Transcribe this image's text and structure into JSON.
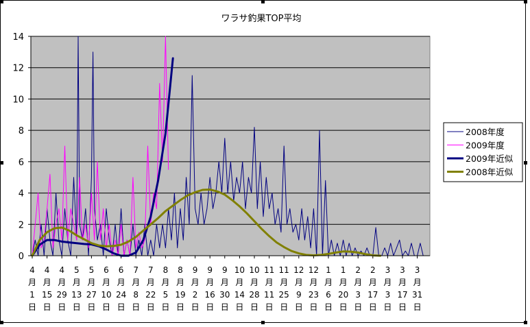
{
  "chart_data": {
    "type": "line",
    "title": "ワラサ釣果TOP平均",
    "ylim": [
      0,
      14
    ],
    "yticks": [
      "0",
      "2",
      "4",
      "6",
      "8",
      "10",
      "12",
      "14"
    ],
    "grid": true,
    "legend_position": "right",
    "plot_background": "#c0c0c0",
    "x_categories": [
      "4\n月\n1\n日",
      "4\n月\n15\n日",
      "4\n月\n29\n日",
      "5\n月\n13\n日",
      "5\n月\n27\n日",
      "6\n月\n10\n日",
      "6\n月\n24\n日",
      "7\n月\n8\n日",
      "7\n月\n22\n日",
      "8\n月\n5\n日",
      "8\n月\n19\n日",
      "9\n月\n2\n日",
      "9\n月\n16\n日",
      "9\n月\n30\n日",
      "10\n月\n14\n日",
      "10\n月\n28\n日",
      "11\n月\n11\n日",
      "11\n月\n25\n日",
      "12\n月\n9\n日",
      "12\n月\n23\n日",
      "1\n月\n6\n日",
      "1\n月\n20\n日",
      "2\n月\n3\n日",
      "2\n月\n17\n日",
      "3\n月\n3\n日",
      "3\n月\n17\n日",
      "3\n月\n31\n日"
    ],
    "series": [
      {
        "name": "2008年度",
        "color": "#000080",
        "width": 1,
        "points": [
          [
            0,
            0
          ],
          [
            0.2,
            1
          ],
          [
            0.4,
            0
          ],
          [
            0.6,
            2
          ],
          [
            0.8,
            0
          ],
          [
            1.0,
            3
          ],
          [
            1.2,
            1
          ],
          [
            1.4,
            0
          ],
          [
            1.6,
            4
          ],
          [
            1.8,
            1
          ],
          [
            2.0,
            0
          ],
          [
            2.2,
            3
          ],
          [
            2.4,
            1
          ],
          [
            2.6,
            0
          ],
          [
            2.8,
            5
          ],
          [
            3.0,
            1
          ],
          [
            3.1,
            14
          ],
          [
            3.2,
            2
          ],
          [
            3.4,
            1
          ],
          [
            3.6,
            3
          ],
          [
            3.8,
            0
          ],
          [
            4.0,
            5
          ],
          [
            4.1,
            13
          ],
          [
            4.2,
            3
          ],
          [
            4.4,
            1
          ],
          [
            4.6,
            2
          ],
          [
            4.8,
            0
          ],
          [
            5.0,
            3
          ],
          [
            5.2,
            1
          ],
          [
            5.4,
            0
          ],
          [
            5.6,
            2
          ],
          [
            5.8,
            0
          ],
          [
            6.0,
            3
          ],
          [
            6.2,
            0
          ],
          [
            6.4,
            1
          ],
          [
            6.6,
            0
          ],
          [
            6.8,
            2
          ],
          [
            7.0,
            0
          ],
          [
            7.2,
            1
          ],
          [
            7.4,
            0
          ],
          [
            7.6,
            2
          ],
          [
            7.8,
            0
          ],
          [
            8.0,
            1
          ],
          [
            8.2,
            0
          ],
          [
            8.4,
            2
          ],
          [
            8.6,
            0.5
          ],
          [
            8.8,
            2
          ],
          [
            9.0,
            0.5
          ],
          [
            9.2,
            3
          ],
          [
            9.4,
            1
          ],
          [
            9.6,
            4
          ],
          [
            9.8,
            0.5
          ],
          [
            10.0,
            3
          ],
          [
            10.2,
            1
          ],
          [
            10.4,
            5
          ],
          [
            10.6,
            2
          ],
          [
            10.8,
            11.5
          ],
          [
            11.0,
            3
          ],
          [
            11.2,
            2
          ],
          [
            11.4,
            4
          ],
          [
            11.6,
            2
          ],
          [
            11.8,
            3
          ],
          [
            12.0,
            5
          ],
          [
            12.2,
            3
          ],
          [
            12.4,
            4
          ],
          [
            12.6,
            6
          ],
          [
            12.8,
            4
          ],
          [
            13.0,
            7.5
          ],
          [
            13.2,
            4
          ],
          [
            13.4,
            6
          ],
          [
            13.6,
            3.5
          ],
          [
            13.8,
            5
          ],
          [
            14.0,
            4
          ],
          [
            14.2,
            6
          ],
          [
            14.4,
            3
          ],
          [
            14.6,
            5
          ],
          [
            14.8,
            4
          ],
          [
            15.0,
            8.2
          ],
          [
            15.2,
            3
          ],
          [
            15.4,
            6
          ],
          [
            15.6,
            2.5
          ],
          [
            15.8,
            5
          ],
          [
            16.0,
            3
          ],
          [
            16.2,
            4
          ],
          [
            16.4,
            2
          ],
          [
            16.6,
            3
          ],
          [
            16.8,
            1.5
          ],
          [
            17.0,
            7
          ],
          [
            17.2,
            2
          ],
          [
            17.4,
            3
          ],
          [
            17.6,
            1.5
          ],
          [
            17.8,
            2
          ],
          [
            18.0,
            1
          ],
          [
            18.2,
            3
          ],
          [
            18.4,
            1
          ],
          [
            18.6,
            2.5
          ],
          [
            18.8,
            0.5
          ],
          [
            19.0,
            3
          ],
          [
            19.2,
            0
          ],
          [
            19.4,
            8
          ],
          [
            19.6,
            0
          ],
          [
            19.8,
            4.8
          ],
          [
            20.0,
            0
          ],
          [
            20.2,
            1
          ],
          [
            20.4,
            0
          ],
          [
            20.6,
            0.8
          ],
          [
            20.8,
            0
          ],
          [
            21.0,
            1
          ],
          [
            21.2,
            0
          ],
          [
            21.4,
            0.8
          ],
          [
            21.6,
            0
          ],
          [
            21.8,
            0.5
          ],
          [
            22.0,
            0
          ],
          [
            22.2,
            0.3
          ],
          [
            22.4,
            0
          ],
          [
            22.6,
            0.5
          ],
          [
            22.8,
            0
          ],
          [
            23.0,
            0
          ],
          [
            23.2,
            1.8
          ],
          [
            23.4,
            0
          ],
          [
            23.6,
            0
          ],
          [
            23.8,
            0.5
          ],
          [
            24.0,
            0
          ],
          [
            24.2,
            0.8
          ],
          [
            24.4,
            0
          ],
          [
            24.6,
            0.5
          ],
          [
            24.8,
            1
          ],
          [
            25.0,
            0
          ],
          [
            25.2,
            0.3
          ],
          [
            25.4,
            0
          ],
          [
            25.6,
            0.8
          ],
          [
            25.8,
            0
          ],
          [
            26.0,
            0
          ],
          [
            26.2,
            0.8
          ],
          [
            26.4,
            0
          ]
        ]
      },
      {
        "name": "2009年度",
        "color": "#ff00ff",
        "width": 1,
        "points": [
          [
            0,
            0
          ],
          [
            0.2,
            2
          ],
          [
            0.4,
            4
          ],
          [
            0.6,
            0.5
          ],
          [
            0.8,
            1
          ],
          [
            1.0,
            3
          ],
          [
            1.2,
            5.2
          ],
          [
            1.4,
            0.5
          ],
          [
            1.6,
            2
          ],
          [
            1.8,
            3
          ],
          [
            2.0,
            1
          ],
          [
            2.2,
            7
          ],
          [
            2.4,
            1
          ],
          [
            2.6,
            3
          ],
          [
            2.8,
            2
          ],
          [
            3.0,
            1
          ],
          [
            3.2,
            5
          ],
          [
            3.4,
            1
          ],
          [
            3.6,
            2
          ],
          [
            3.8,
            0.5
          ],
          [
            4.0,
            4
          ],
          [
            4.2,
            1
          ],
          [
            4.4,
            6
          ],
          [
            4.6,
            1
          ],
          [
            4.8,
            3
          ],
          [
            5.0,
            0.5
          ],
          [
            5.2,
            2
          ],
          [
            5.4,
            0
          ],
          [
            5.6,
            1
          ],
          [
            5.8,
            0
          ],
          [
            6.0,
            2
          ],
          [
            6.2,
            0
          ],
          [
            6.4,
            1
          ],
          [
            6.6,
            0
          ],
          [
            6.8,
            5
          ],
          [
            7.0,
            0.5
          ],
          [
            7.2,
            1.5
          ],
          [
            7.4,
            0.5
          ],
          [
            7.6,
            1
          ],
          [
            7.8,
            7
          ],
          [
            8.0,
            2
          ],
          [
            8.2,
            4
          ],
          [
            8.4,
            3
          ],
          [
            8.6,
            11
          ],
          [
            8.8,
            6
          ],
          [
            9.0,
            14
          ],
          [
            9.2,
            5.5
          ]
        ]
      },
      {
        "name": "2009年近似",
        "color": "#000080",
        "width": 3,
        "points": [
          [
            0,
            0
          ],
          [
            0.5,
            0.7
          ],
          [
            1,
            1.0
          ],
          [
            1.5,
            1.0
          ],
          [
            2,
            0.9
          ],
          [
            2.5,
            0.85
          ],
          [
            3,
            0.8
          ],
          [
            3.5,
            0.75
          ],
          [
            4,
            0.72
          ],
          [
            4.5,
            0.6
          ],
          [
            5,
            0.4
          ],
          [
            5.5,
            0.15
          ],
          [
            6,
            0
          ],
          [
            6.5,
            0
          ],
          [
            7,
            0.2
          ],
          [
            7.5,
            1.0
          ],
          [
            8,
            2.5
          ],
          [
            8.5,
            4.8
          ],
          [
            9,
            7.8
          ],
          [
            9.5,
            12.6
          ]
        ]
      },
      {
        "name": "2008年近似",
        "color": "#808000",
        "width": 3,
        "points": [
          [
            0,
            0
          ],
          [
            0.5,
            1.0
          ],
          [
            1,
            1.5
          ],
          [
            1.5,
            1.75
          ],
          [
            2,
            1.8
          ],
          [
            2.5,
            1.6
          ],
          [
            3,
            1.3
          ],
          [
            3.5,
            1.05
          ],
          [
            4,
            0.8
          ],
          [
            4.5,
            0.65
          ],
          [
            5,
            0.6
          ],
          [
            5.5,
            0.62
          ],
          [
            6,
            0.7
          ],
          [
            6.5,
            0.9
          ],
          [
            7,
            1.2
          ],
          [
            7.5,
            1.6
          ],
          [
            8,
            2.0
          ],
          [
            8.5,
            2.4
          ],
          [
            9,
            2.85
          ],
          [
            9.5,
            3.2
          ],
          [
            10,
            3.55
          ],
          [
            10.5,
            3.85
          ],
          [
            11,
            4.05
          ],
          [
            11.5,
            4.2
          ],
          [
            12,
            4.22
          ],
          [
            12.5,
            4.1
          ],
          [
            13,
            3.9
          ],
          [
            13.5,
            3.55
          ],
          [
            14,
            3.15
          ],
          [
            14.5,
            2.7
          ],
          [
            15,
            2.2
          ],
          [
            15.5,
            1.7
          ],
          [
            16,
            1.25
          ],
          [
            16.5,
            0.85
          ],
          [
            17,
            0.55
          ],
          [
            17.5,
            0.3
          ],
          [
            18,
            0.15
          ],
          [
            18.5,
            0.05
          ],
          [
            19,
            0.02
          ],
          [
            19.5,
            0.05
          ],
          [
            20,
            0.12
          ],
          [
            20.5,
            0.2
          ],
          [
            21,
            0.27
          ],
          [
            21.5,
            0.26
          ],
          [
            22,
            0.2
          ],
          [
            22.5,
            0.1
          ],
          [
            23,
            0.02
          ],
          [
            23.5,
            0
          ]
        ]
      }
    ]
  }
}
